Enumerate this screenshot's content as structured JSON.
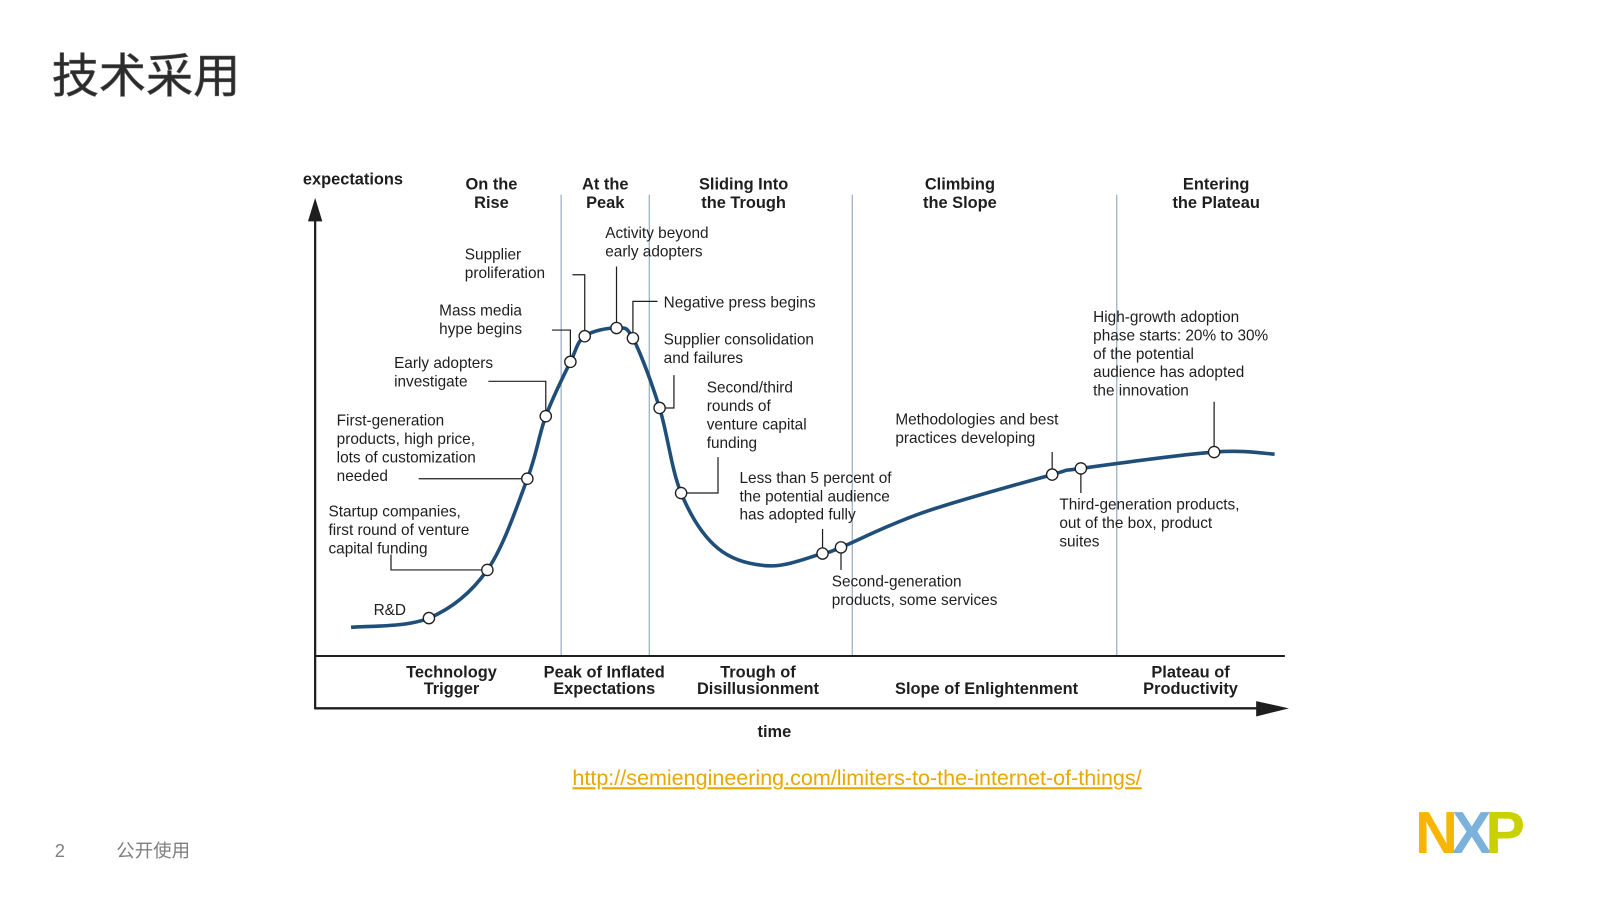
{
  "header": {
    "title": "技术采用"
  },
  "diagram": {
    "y_axis_label": "expectations",
    "x_axis_label": "time",
    "phase_headers": [
      [
        "On the",
        "Rise"
      ],
      [
        "At the",
        "Peak"
      ],
      [
        "Sliding Into",
        "the Trough"
      ],
      [
        "Climbing",
        "the Slope"
      ],
      [
        "Entering",
        "the Plateau"
      ]
    ],
    "phase_names": [
      [
        "Technology",
        "Trigger"
      ],
      [
        "Peak of Inflated",
        "Expectations"
      ],
      [
        "Trough of",
        "Disillusionment"
      ],
      [
        "Slope of Enlightenment"
      ],
      [
        "Plateau of",
        "Productivity"
      ]
    ],
    "annotations": [
      [
        "R&D"
      ],
      [
        "Startup companies,",
        "first round of venture",
        "capital funding"
      ],
      [
        "First-generation",
        "products, high price,",
        "lots of customization",
        "needed"
      ],
      [
        "Early adopters",
        "investigate"
      ],
      [
        "Mass media",
        "hype begins"
      ],
      [
        "Supplier",
        "proliferation"
      ],
      [
        "Activity beyond",
        "early adopters"
      ],
      [
        "Negative press begins"
      ],
      [
        "Supplier consolidation",
        "and failures"
      ],
      [
        "Second/third",
        "rounds of",
        "venture capital",
        "funding"
      ],
      [
        "Less than 5 percent of",
        "the potential audience",
        "has adopted fully"
      ],
      [
        "Second-generation",
        "products, some services"
      ],
      [
        "Methodologies and best",
        "practices developing"
      ],
      [
        "Third-generation products,",
        "out of the box, product",
        "suites"
      ],
      [
        "High-growth adoption",
        "phase starts: 20% to 30%",
        "of the potential",
        "audience has adopted",
        "the innovation"
      ]
    ]
  },
  "source_link": "http://semiengineering.com/limiters-to-the-internet-of-things/",
  "footer": {
    "page_number": "2",
    "classification": "公开使用"
  },
  "logo": [
    "N",
    "X",
    "P"
  ]
}
